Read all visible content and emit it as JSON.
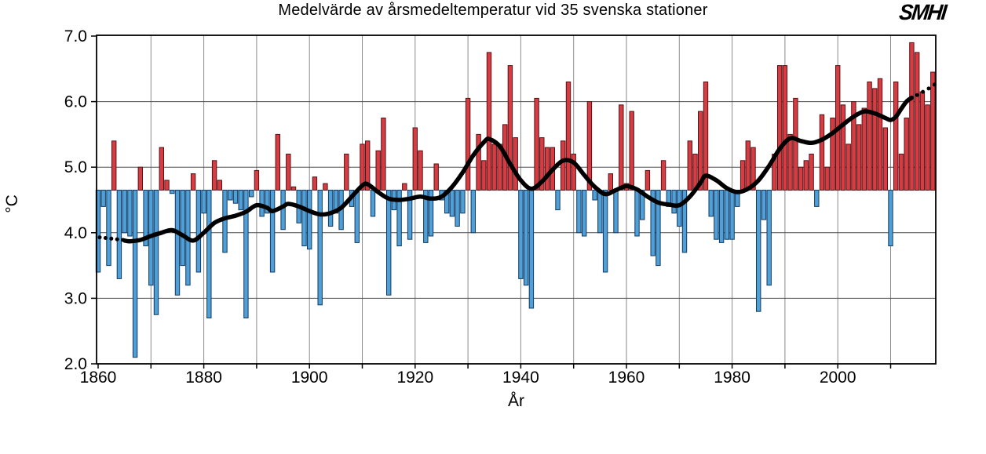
{
  "page": {
    "background": "#ffffff"
  },
  "header": {
    "title": "Medelvärde av årsmedeltemperatur vid 35 svenska stationer",
    "logo_text": "SMHI"
  },
  "chart_data": {
    "type": "bar",
    "title": "Medelvärde av årsmedeltemperatur vid 35 svenska stationer",
    "xlabel": "År",
    "ylabel": "°C",
    "ylim": [
      2.0,
      7.0
    ],
    "xlim": [
      1859.5,
      2018.7
    ],
    "grid": true,
    "legend_position": "none",
    "baseline": 4.65,
    "start_year": 1860,
    "end_year": 2018,
    "y_ticks": [
      2.0,
      3.0,
      4.0,
      5.0,
      6.0,
      7.0
    ],
    "y_tick_labels": [
      "2.0",
      "3.0",
      "4.0",
      "5.0",
      "6.0",
      "7.0"
    ],
    "x_tick_years": [
      1860,
      1880,
      1900,
      1920,
      1940,
      1960,
      1980,
      2000
    ],
    "x_tick_labels": [
      "1860",
      "1880",
      "1900",
      "1920",
      "1940",
      "1960",
      "1980",
      "2000"
    ],
    "series": [
      {
        "name": "Årsmedeltemperatur (°C)",
        "values": [
          3.4,
          4.4,
          3.5,
          5.4,
          3.3,
          4.0,
          3.95,
          2.1,
          5.0,
          3.8,
          3.2,
          2.75,
          5.3,
          4.8,
          4.6,
          3.05,
          3.5,
          3.2,
          4.9,
          3.4,
          4.3,
          2.7,
          5.1,
          4.8,
          3.7,
          4.5,
          4.45,
          4.35,
          2.7,
          4.55,
          4.95,
          4.25,
          4.3,
          3.4,
          5.5,
          4.05,
          5.2,
          4.7,
          4.15,
          3.8,
          3.75,
          4.85,
          2.9,
          4.75,
          4.1,
          4.3,
          4.05,
          5.2,
          4.4,
          3.85,
          5.35,
          5.4,
          4.25,
          5.25,
          5.75,
          3.05,
          4.35,
          3.8,
          4.75,
          3.9,
          5.6,
          5.25,
          3.85,
          3.95,
          5.05,
          4.5,
          4.3,
          4.25,
          4.1,
          4.3,
          6.05,
          4.0,
          5.5,
          5.1,
          6.75,
          5.35,
          5.35,
          5.65,
          6.55,
          5.45,
          3.3,
          3.2,
          2.85,
          6.05,
          5.45,
          5.3,
          5.3,
          4.35,
          5.4,
          6.3,
          5.2,
          4.0,
          3.95,
          6.0,
          4.5,
          4.0,
          3.4,
          4.9,
          4.0,
          5.95,
          4.75,
          5.85,
          3.95,
          4.2,
          4.95,
          3.65,
          3.5,
          5.1,
          4.4,
          4.3,
          4.1,
          3.7,
          5.4,
          5.2,
          5.85,
          6.3,
          4.25,
          3.9,
          3.85,
          3.9,
          3.9,
          4.4,
          5.1,
          5.4,
          5.3,
          2.8,
          4.2,
          3.2,
          5.2,
          6.55,
          6.55,
          5.5,
          6.05,
          5.0,
          5.1,
          5.2,
          4.4,
          5.8,
          5.0,
          5.75,
          6.55,
          5.95,
          5.35,
          6.0,
          5.65,
          5.9,
          6.3,
          6.2,
          6.35,
          5.6,
          3.8,
          6.3,
          5.2,
          5.75,
          6.9,
          6.75,
          6.15,
          5.95,
          6.45
        ]
      }
    ],
    "trend_curve": {
      "description": "smoothed mean temperature, solid line with dotted ends",
      "solid_points": [
        [
          1865,
          3.88
        ],
        [
          1866,
          3.87
        ],
        [
          1868,
          3.89
        ],
        [
          1870,
          3.95
        ],
        [
          1872,
          4.0
        ],
        [
          1874,
          4.04
        ],
        [
          1876,
          3.96
        ],
        [
          1878,
          3.88
        ],
        [
          1880,
          4.0
        ],
        [
          1882,
          4.15
        ],
        [
          1884,
          4.22
        ],
        [
          1886,
          4.26
        ],
        [
          1888,
          4.32
        ],
        [
          1890,
          4.42
        ],
        [
          1892,
          4.38
        ],
        [
          1893,
          4.33
        ],
        [
          1895,
          4.4
        ],
        [
          1896,
          4.44
        ],
        [
          1898,
          4.4
        ],
        [
          1900,
          4.33
        ],
        [
          1902,
          4.28
        ],
        [
          1904,
          4.3
        ],
        [
          1906,
          4.38
        ],
        [
          1908,
          4.55
        ],
        [
          1910,
          4.72
        ],
        [
          1911,
          4.74
        ],
        [
          1913,
          4.62
        ],
        [
          1915,
          4.52
        ],
        [
          1917,
          4.5
        ],
        [
          1919,
          4.52
        ],
        [
          1921,
          4.55
        ],
        [
          1923,
          4.52
        ],
        [
          1925,
          4.55
        ],
        [
          1927,
          4.7
        ],
        [
          1929,
          4.92
        ],
        [
          1931,
          5.18
        ],
        [
          1933,
          5.38
        ],
        [
          1934,
          5.43
        ],
        [
          1936,
          5.32
        ],
        [
          1938,
          5.05
        ],
        [
          1940,
          4.8
        ],
        [
          1942,
          4.67
        ],
        [
          1944,
          4.78
        ],
        [
          1946,
          4.96
        ],
        [
          1948,
          5.1
        ],
        [
          1950,
          5.07
        ],
        [
          1952,
          4.88
        ],
        [
          1954,
          4.7
        ],
        [
          1956,
          4.59
        ],
        [
          1958,
          4.65
        ],
        [
          1960,
          4.71
        ],
        [
          1962,
          4.66
        ],
        [
          1964,
          4.55
        ],
        [
          1966,
          4.46
        ],
        [
          1968,
          4.43
        ],
        [
          1970,
          4.42
        ],
        [
          1972,
          4.55
        ],
        [
          1974,
          4.76
        ],
        [
          1975,
          4.87
        ],
        [
          1977,
          4.8
        ],
        [
          1979,
          4.68
        ],
        [
          1981,
          4.62
        ],
        [
          1983,
          4.67
        ],
        [
          1985,
          4.8
        ],
        [
          1987,
          5.02
        ],
        [
          1989,
          5.28
        ],
        [
          1991,
          5.44
        ],
        [
          1993,
          5.4
        ],
        [
          1995,
          5.37
        ],
        [
          1997,
          5.42
        ],
        [
          1999,
          5.52
        ],
        [
          2001,
          5.65
        ],
        [
          2003,
          5.77
        ],
        [
          2005,
          5.85
        ],
        [
          2007,
          5.82
        ],
        [
          2009,
          5.75
        ],
        [
          2010,
          5.72
        ],
        [
          2011,
          5.77
        ],
        [
          2012,
          5.89
        ],
        [
          2013,
          6.0
        ],
        [
          2014,
          6.06
        ]
      ],
      "dots_start": [
        [
          1860.3,
          3.93
        ],
        [
          1861.4,
          3.92
        ],
        [
          1862.5,
          3.91
        ],
        [
          1863.6,
          3.9
        ],
        [
          1864.7,
          3.89
        ]
      ],
      "dots_end": [
        [
          2015.0,
          6.1
        ],
        [
          2016.1,
          6.15
        ],
        [
          2017.2,
          6.2
        ],
        [
          2018.3,
          6.26
        ]
      ]
    },
    "colors": {
      "above_baseline": "#d63c42",
      "below_baseline": "#50a0d7",
      "bar_stroke_warm": "#551317",
      "bar_stroke_cold": "#103a63",
      "trend": "#000000",
      "grid_vertical": "#8a8a8a",
      "grid_horizontal": "#4a4a4a",
      "frame": "#000000"
    }
  }
}
